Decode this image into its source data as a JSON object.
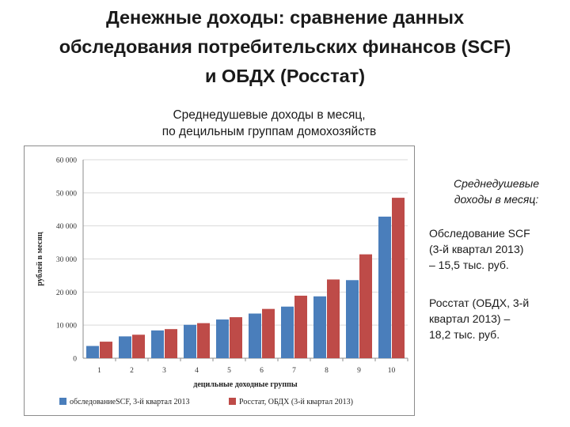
{
  "header": {
    "title_lines": [
      "Денежные доходы: сравнение данных",
      "обследования потребительских финансов (SCF)",
      "и ОБДХ (Росстат)"
    ],
    "subtitle_lines": [
      "Среднедушевые доходы в месяц,",
      "по децильным группам домохозяйств"
    ]
  },
  "sidebar": {
    "heading_lines": [
      "Среднедушевые",
      "доходы в месяц:"
    ],
    "scf_lines": [
      "Обследование SCF",
      "(3-й квартал 2013)",
      "–  15,5 тыс. руб."
    ],
    "rosstat_lines": [
      "Росстат (ОБДХ, 3-й",
      "квартал 2013) –",
      "18,2 тыс. руб."
    ]
  },
  "colors": {
    "scf": "#4a7ebb",
    "rosstat": "#be4b48",
    "grid": "#d9d9d9",
    "axis": "#8c8c8c"
  },
  "chart_data": {
    "type": "bar",
    "categories": [
      "1",
      "2",
      "3",
      "4",
      "5",
      "6",
      "7",
      "8",
      "9",
      "10"
    ],
    "series": [
      {
        "name": "обследованиеSCF, 3-й квартал 2013",
        "values": [
          3700,
          6600,
          8400,
          10100,
          11700,
          13500,
          15600,
          18700,
          23600,
          42800
        ]
      },
      {
        "name": "Росстат, ОБДХ (3-й квартал 2013)",
        "values": [
          5000,
          7100,
          8800,
          10600,
          12400,
          14900,
          18900,
          23800,
          31400,
          48500
        ]
      }
    ],
    "xlabel": "децильные доходные группы",
    "ylabel": "рублей в месяц",
    "ylim": [
      0,
      60000
    ],
    "yticks": [
      "0",
      "10 000",
      "20 000",
      "30 000",
      "40 000",
      "50 000",
      "60 000"
    ],
    "grid": true,
    "legend_position": "bottom"
  }
}
